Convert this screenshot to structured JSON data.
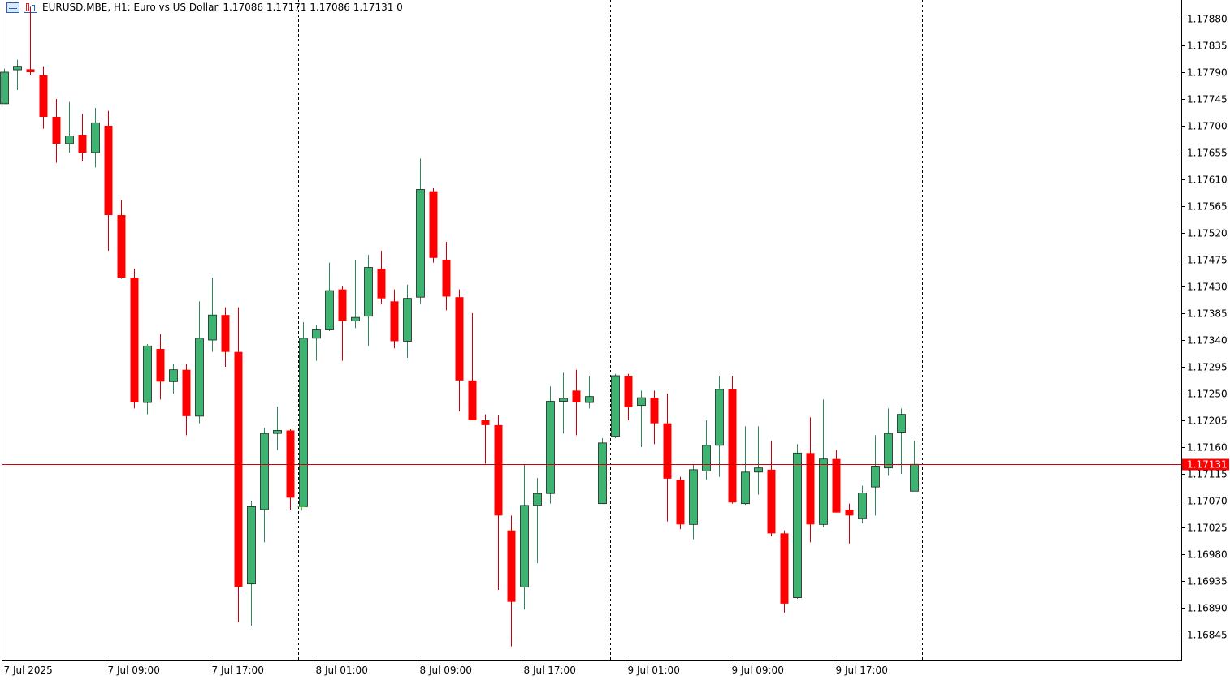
{
  "header": {
    "symbol_info": "EURUSD.MBE, H1:  Euro vs US Dollar",
    "ohlc": "1.17086 1.17171 1.17086 1.17131  0",
    "icons": [
      "table-icon",
      "bar-chart-icon"
    ]
  },
  "chart_data": {
    "type": "candlestick",
    "symbol": "EURUSD.MBE",
    "timeframe": "H1",
    "ylim": [
      1.1682,
      1.179
    ],
    "current_price": 1.17131,
    "current_price_label": "1.17131",
    "colors": {
      "bull": "#3cb371",
      "bear": "#ff0000",
      "axis": "#000000",
      "current_line": "#cc0000",
      "separator": "#000000"
    },
    "price_ticks": [
      "1.17880",
      "1.17835",
      "1.17790",
      "1.17745",
      "1.17700",
      "1.17655",
      "1.17610",
      "1.17565",
      "1.17520",
      "1.17475",
      "1.17430",
      "1.17385",
      "1.17340",
      "1.17295",
      "1.17250",
      "1.17205",
      "1.17160",
      "1.17115",
      "1.17070",
      "1.17025",
      "1.16980",
      "1.16935",
      "1.16890",
      "1.16845"
    ],
    "time_labels": [
      {
        "label": "7 Jul 2025",
        "index": 0
      },
      {
        "label": "7 Jul 09:00",
        "index": 8
      },
      {
        "label": "7 Jul 17:00",
        "index": 16
      },
      {
        "label": "8 Jul 01:00",
        "index": 24
      },
      {
        "label": "8 Jul 09:00",
        "index": 32
      },
      {
        "label": "8 Jul 17:00",
        "index": 40
      },
      {
        "label": "9 Jul 01:00",
        "index": 48
      },
      {
        "label": "9 Jul 09:00",
        "index": 56
      },
      {
        "label": "9 Jul 17:00",
        "index": 64
      }
    ],
    "day_separators_after_index": [
      22.6,
      46.6,
      70.6
    ],
    "candles": [
      {
        "o": 1.17737,
        "h": 1.17796,
        "l": 1.17737,
        "c": 1.1779
      },
      {
        "o": 1.17794,
        "h": 1.17811,
        "l": 1.1776,
        "c": 1.178
      },
      {
        "o": 1.17795,
        "h": 1.179,
        "l": 1.17785,
        "c": 1.1779
      },
      {
        "o": 1.17785,
        "h": 1.178,
        "l": 1.17695,
        "c": 1.17715
      },
      {
        "o": 1.17715,
        "h": 1.17745,
        "l": 1.17638,
        "c": 1.1767
      },
      {
        "o": 1.1767,
        "h": 1.1774,
        "l": 1.17655,
        "c": 1.17683
      },
      {
        "o": 1.17685,
        "h": 1.1772,
        "l": 1.1764,
        "c": 1.17655
      },
      {
        "o": 1.17655,
        "h": 1.1773,
        "l": 1.1763,
        "c": 1.17705
      },
      {
        "o": 1.177,
        "h": 1.17725,
        "l": 1.1749,
        "c": 1.1755
      },
      {
        "o": 1.1755,
        "h": 1.17575,
        "l": 1.17443,
        "c": 1.17445
      },
      {
        "o": 1.17445,
        "h": 1.1746,
        "l": 1.17225,
        "c": 1.17235
      },
      {
        "o": 1.17235,
        "h": 1.17333,
        "l": 1.17215,
        "c": 1.1733
      },
      {
        "o": 1.17325,
        "h": 1.1735,
        "l": 1.1724,
        "c": 1.1727
      },
      {
        "o": 1.1727,
        "h": 1.173,
        "l": 1.1725,
        "c": 1.1729
      },
      {
        "o": 1.1729,
        "h": 1.173,
        "l": 1.1718,
        "c": 1.17212
      },
      {
        "o": 1.17212,
        "h": 1.17405,
        "l": 1.172,
        "c": 1.17343
      },
      {
        "o": 1.1734,
        "h": 1.17445,
        "l": 1.1732,
        "c": 1.17382
      },
      {
        "o": 1.17382,
        "h": 1.17395,
        "l": 1.17295,
        "c": 1.1732
      },
      {
        "o": 1.1732,
        "h": 1.17395,
        "l": 1.16866,
        "c": 1.16925
      },
      {
        "o": 1.1693,
        "h": 1.1707,
        "l": 1.1686,
        "c": 1.1706
      },
      {
        "o": 1.17055,
        "h": 1.17192,
        "l": 1.17,
        "c": 1.17183
      },
      {
        "o": 1.17183,
        "h": 1.17228,
        "l": 1.17155,
        "c": 1.17188
      },
      {
        "o": 1.17188,
        "h": 1.1719,
        "l": 1.17055,
        "c": 1.17075
      },
      {
        "o": 1.1706,
        "h": 1.1737,
        "l": 1.1706,
        "c": 1.17343
      },
      {
        "o": 1.17343,
        "h": 1.17365,
        "l": 1.17305,
        "c": 1.17357
      },
      {
        "o": 1.17357,
        "h": 1.1747,
        "l": 1.17355,
        "c": 1.17423
      },
      {
        "o": 1.17425,
        "h": 1.1743,
        "l": 1.17305,
        "c": 1.17372
      },
      {
        "o": 1.17372,
        "h": 1.17475,
        "l": 1.1736,
        "c": 1.17378
      },
      {
        "o": 1.1738,
        "h": 1.17483,
        "l": 1.1733,
        "c": 1.17462
      },
      {
        "o": 1.1746,
        "h": 1.1749,
        "l": 1.174,
        "c": 1.1741
      },
      {
        "o": 1.17405,
        "h": 1.17425,
        "l": 1.17326,
        "c": 1.17338
      },
      {
        "o": 1.17338,
        "h": 1.17433,
        "l": 1.1731,
        "c": 1.1741
      },
      {
        "o": 1.17412,
        "h": 1.17645,
        "l": 1.174,
        "c": 1.17593
      },
      {
        "o": 1.1759,
        "h": 1.17595,
        "l": 1.1747,
        "c": 1.17478
      },
      {
        "o": 1.17475,
        "h": 1.17505,
        "l": 1.1739,
        "c": 1.17413
      },
      {
        "o": 1.17412,
        "h": 1.17425,
        "l": 1.1722,
        "c": 1.17272
      },
      {
        "o": 1.17272,
        "h": 1.17385,
        "l": 1.17205,
        "c": 1.17205
      },
      {
        "o": 1.17205,
        "h": 1.17215,
        "l": 1.17132,
        "c": 1.17197
      },
      {
        "o": 1.17197,
        "h": 1.17213,
        "l": 1.1692,
        "c": 1.17045
      },
      {
        "o": 1.1702,
        "h": 1.17045,
        "l": 1.16825,
        "c": 1.169
      },
      {
        "o": 1.16925,
        "h": 1.1713,
        "l": 1.16887,
        "c": 1.17062
      },
      {
        "o": 1.17062,
        "h": 1.17108,
        "l": 1.16965,
        "c": 1.17082
      },
      {
        "o": 1.17082,
        "h": 1.17262,
        "l": 1.17065,
        "c": 1.17237
      },
      {
        "o": 1.17237,
        "h": 1.17285,
        "l": 1.17183,
        "c": 1.17242
      },
      {
        "o": 1.17255,
        "h": 1.1729,
        "l": 1.1718,
        "c": 1.17235
      },
      {
        "o": 1.17235,
        "h": 1.1728,
        "l": 1.17225,
        "c": 1.17245
      },
      {
        "o": 1.17065,
        "h": 1.17175,
        "l": 1.17065,
        "c": 1.17167
      },
      {
        "o": 1.17178,
        "h": 1.17283,
        "l": 1.17175,
        "c": 1.1728
      },
      {
        "o": 1.1728,
        "h": 1.17283,
        "l": 1.17205,
        "c": 1.17227
      },
      {
        "o": 1.1723,
        "h": 1.17255,
        "l": 1.1716,
        "c": 1.17243
      },
      {
        "o": 1.17243,
        "h": 1.17255,
        "l": 1.17165,
        "c": 1.172
      },
      {
        "o": 1.172,
        "h": 1.1725,
        "l": 1.17035,
        "c": 1.17107
      },
      {
        "o": 1.17105,
        "h": 1.1711,
        "l": 1.17022,
        "c": 1.1703
      },
      {
        "o": 1.1703,
        "h": 1.1713,
        "l": 1.17005,
        "c": 1.17122
      },
      {
        "o": 1.1712,
        "h": 1.17205,
        "l": 1.17105,
        "c": 1.17163
      },
      {
        "o": 1.17163,
        "h": 1.1728,
        "l": 1.1711,
        "c": 1.17257
      },
      {
        "o": 1.17257,
        "h": 1.1728,
        "l": 1.17065,
        "c": 1.17067
      },
      {
        "o": 1.17065,
        "h": 1.17195,
        "l": 1.17063,
        "c": 1.17118
      },
      {
        "o": 1.17118,
        "h": 1.17195,
        "l": 1.1708,
        "c": 1.17125
      },
      {
        "o": 1.17122,
        "h": 1.1717,
        "l": 1.1701,
        "c": 1.17015
      },
      {
        "o": 1.17015,
        "h": 1.1702,
        "l": 1.16882,
        "c": 1.16897
      },
      {
        "o": 1.16907,
        "h": 1.17165,
        "l": 1.16905,
        "c": 1.1715
      },
      {
        "o": 1.1715,
        "h": 1.1721,
        "l": 1.17,
        "c": 1.1703
      },
      {
        "o": 1.1703,
        "h": 1.1724,
        "l": 1.17025,
        "c": 1.1714
      },
      {
        "o": 1.1714,
        "h": 1.17155,
        "l": 1.1705,
        "c": 1.1705
      },
      {
        "o": 1.17055,
        "h": 1.17065,
        "l": 1.16998,
        "c": 1.17045
      },
      {
        "o": 1.1704,
        "h": 1.17095,
        "l": 1.17032,
        "c": 1.17083
      },
      {
        "o": 1.17093,
        "h": 1.1718,
        "l": 1.17045,
        "c": 1.17128
      },
      {
        "o": 1.17125,
        "h": 1.17225,
        "l": 1.17113,
        "c": 1.17183
      },
      {
        "o": 1.17185,
        "h": 1.17225,
        "l": 1.17115,
        "c": 1.17215
      },
      {
        "o": 1.17086,
        "h": 1.17171,
        "l": 1.17086,
        "c": 1.17131
      }
    ]
  }
}
